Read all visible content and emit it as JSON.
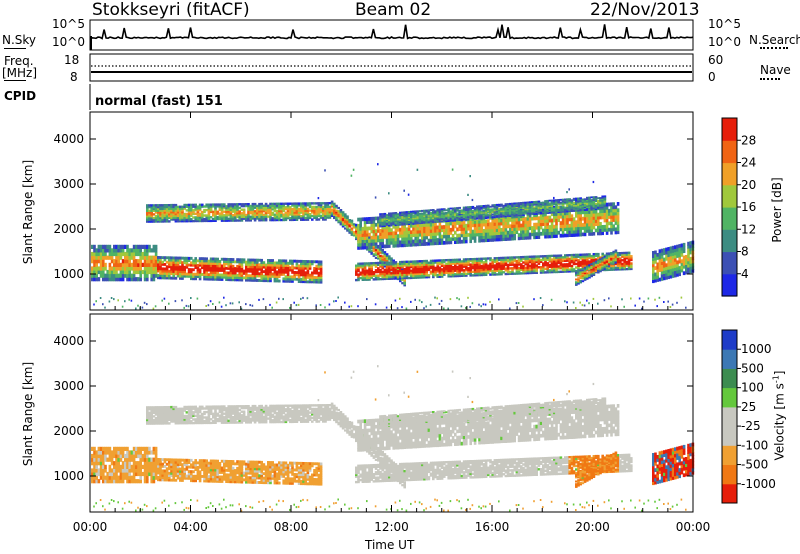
{
  "header": {
    "station": "Stokkseyri (fitACF)",
    "beam": "Beam 02",
    "date": "22/Nov/2013"
  },
  "noise_panel": {
    "left_label": "N.Sky",
    "right_label": "N.Search",
    "left_ticks": [
      "10^5",
      "10^0"
    ],
    "right_ticks": [
      "10^5",
      "10^0"
    ]
  },
  "freq_panel": {
    "left_label_line1": "Freq.",
    "left_label_line2": "[MHz]",
    "right_label": "Nave",
    "left_ticks": [
      "18",
      "8"
    ],
    "right_ticks": [
      "60",
      "0"
    ]
  },
  "cpid": {
    "label": "CPID",
    "value": "normal (fast) 151"
  },
  "x_axis": {
    "label": "Time UT",
    "ticks": [
      "00:00",
      "04:00",
      "08:00",
      "12:00",
      "16:00",
      "20:00",
      "00:00"
    ]
  },
  "chart_data": [
    {
      "type": "heatmap",
      "name": "power",
      "ylabel": "Slant Range [km]",
      "yticks": [
        "1000",
        "2000",
        "3000",
        "4000"
      ],
      "ylim": [
        200,
        4600
      ],
      "xlim": [
        "00:00",
        "24:00"
      ],
      "colorbar_label": "Power [dB]",
      "colorbar_ticks": [
        "4",
        "8",
        "12",
        "16",
        "20",
        "24",
        "28"
      ],
      "colorbar_colors": [
        "#1e28e6",
        "#3c50b4",
        "#3c8c82",
        "#50b464",
        "#a0c83c",
        "#f0a028",
        "#f06414",
        "#e61e0a"
      ]
    },
    {
      "type": "heatmap",
      "name": "velocity",
      "ylabel": "Slant Range [km]",
      "yticks": [
        "1000",
        "2000",
        "3000",
        "4000"
      ],
      "ylim": [
        200,
        4600
      ],
      "xlim": [
        "00:00",
        "24:00"
      ],
      "colorbar_label": "Velocity [m s",
      "colorbar_label_sup": "-1",
      "colorbar_label_end": "]",
      "colorbar_ticks": [
        "1000",
        "500",
        "100",
        "25",
        "-25",
        "-100",
        "-500",
        "-1000"
      ],
      "colorbar_colors": [
        "#1e3cc8",
        "#3c78b4",
        "#3c8c50",
        "#64c83c",
        "#c8c8c0",
        "#c8c8c0",
        "#f0a032",
        "#f07814",
        "#e61e0a"
      ]
    }
  ]
}
